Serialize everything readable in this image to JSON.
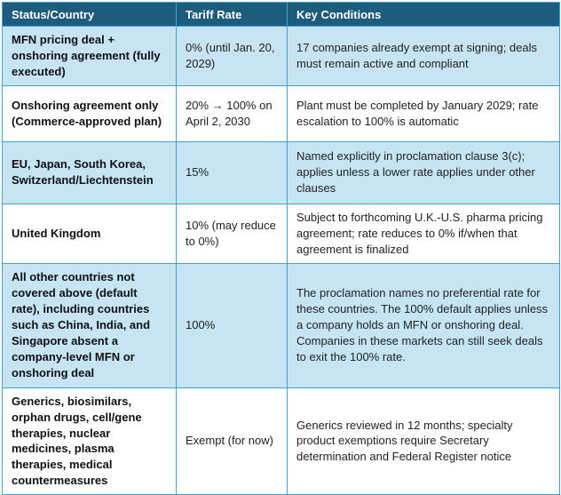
{
  "colors": {
    "header_bg": "#1d5c7c",
    "header_text": "#ffffff",
    "row_alt_bg": "#c7e4f3",
    "row_bg": "#ffffff",
    "border": "#3fa2d4",
    "body_text": "#222222"
  },
  "table": {
    "columns": [
      "Status/Country",
      "Tariff Rate",
      "Key Conditions"
    ],
    "rows": [
      {
        "status": "MFN pricing deal + onshoring agreement (fully executed)",
        "rate": "0% (until Jan. 20, 2029)",
        "conditions": "17 companies already exempt at signing; deals must remain active and compliant"
      },
      {
        "status": "Onshoring agreement only (Commerce-approved plan)",
        "rate": "20% → 100% on April 2, 2030",
        "conditions": "Plant must be completed by January 2029; rate escalation to 100% is automatic"
      },
      {
        "status": "EU, Japan, South Korea, Switzerland/Liechtenstein",
        "rate": "15%",
        "conditions": "Named explicitly in proclamation clause 3(c); applies unless a lower rate applies under other clauses"
      },
      {
        "status": "United Kingdom",
        "rate": "10% (may reduce to 0%)",
        "conditions": "Subject to forthcoming U.K.-U.S. pharma pricing agreement; rate reduces to 0% if/when that agreement is finalized"
      },
      {
        "status": "All other countries not covered above (default rate), including countries such as China, India, and Singapore absent a company-level MFN or onshoring deal",
        "rate": "100%",
        "conditions": "The proclamation names no preferential rate for these countries. The 100% default applies unless a company holds an MFN or onshoring deal. Companies in these markets can still seek deals to exit the 100% rate."
      },
      {
        "status": "Generics, biosimilars, orphan drugs, cell/gene therapies, nuclear medicines, plasma therapies, medical countermeasures",
        "rate": "Exempt (for now)",
        "conditions": "Generics reviewed in 12 months; specialty product exemptions require Secretary determination and Federal Register notice"
      }
    ]
  }
}
